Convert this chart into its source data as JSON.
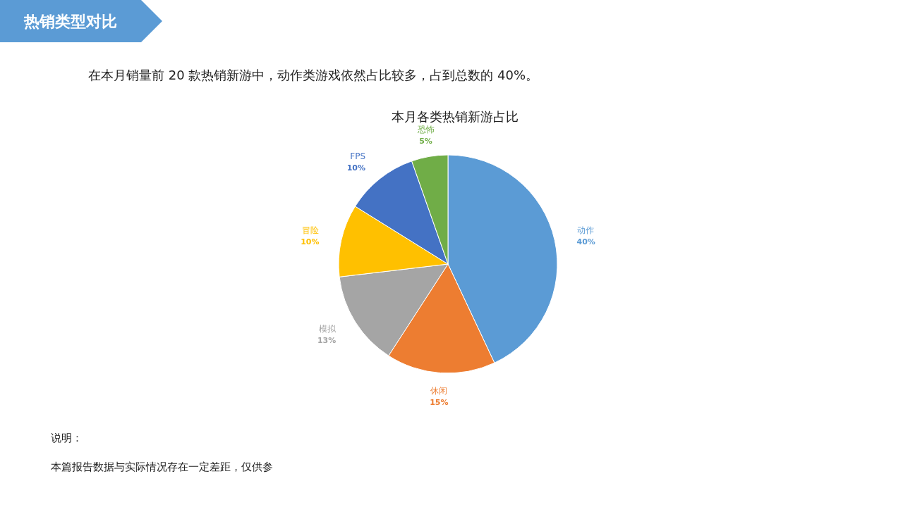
{
  "chart_data": {
    "type": "pie",
    "title": "本月各类热销新游占比",
    "subtitle": "在本月销量前 20 款热销新游中，动作类游戏依然占比较多，占到总数的 40%。",
    "annotations": [
      "热销类型对比",
      "说明：",
      "本篇报告数据与实际情况存在一定差距，仅供参"
    ],
    "categories": [
      "动作",
      "休闲",
      "模拟",
      "冒险",
      "FPS",
      "恐怖"
    ],
    "values": [
      40,
      15,
      13,
      10,
      10,
      5
    ],
    "value_labels": [
      "40%",
      "15%",
      "13%",
      "10%",
      "10%",
      "5%"
    ],
    "colors": [
      "#5b9bd5",
      "#ed7d31",
      "#a5a5a5",
      "#ffc000",
      "#4472c4",
      "#70ad47"
    ]
  }
}
